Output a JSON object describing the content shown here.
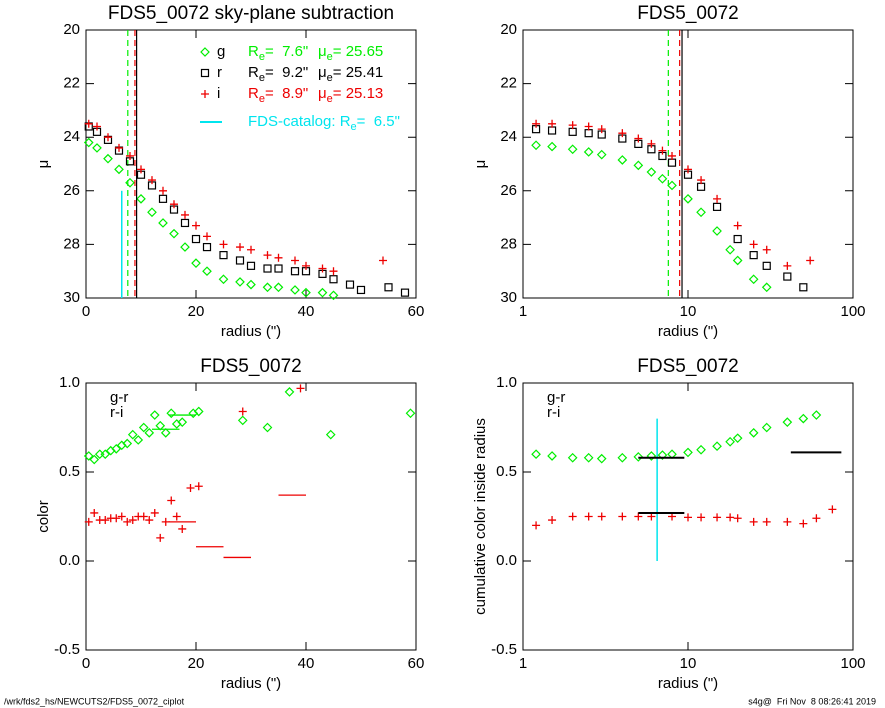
{
  "chart_data": [
    {
      "type": "scatter",
      "title": "FDS5_0072 sky-plane subtraction",
      "xlabel": "radius (\")",
      "ylabel": "μ",
      "xlim": [
        0,
        60
      ],
      "xticks": [
        0,
        20,
        40,
        60
      ],
      "ylim": [
        30,
        20
      ],
      "yticks": [
        20,
        22,
        24,
        26,
        28,
        30
      ],
      "xlog": false,
      "legend_text": {
        "r": "R",
        "mu": "μ",
        "sub": "e",
        "eq": "= "
      },
      "catalog": {
        "label": "FDS-catalog: ",
        "value": 6.5,
        "value_label": " 6.5\"",
        "color": "#00e5ee",
        "span": [
          26,
          30
        ]
      },
      "series": [
        {
          "name": "g",
          "color": "#00ee00",
          "marker": "diamond",
          "re": 7.6,
          "re_label": " 7.6\"",
          "mu_e": 25.65,
          "dash": true,
          "x": [
            0.5,
            2,
            4,
            6,
            8,
            10,
            12,
            14,
            16,
            18,
            20,
            22,
            25,
            28,
            30,
            33,
            35,
            38,
            40,
            43,
            45
          ],
          "y": [
            24.2,
            24.4,
            24.8,
            25.2,
            25.7,
            26.3,
            26.8,
            27.2,
            27.6,
            28.1,
            28.7,
            29.0,
            29.3,
            29.4,
            29.5,
            29.6,
            29.6,
            29.7,
            29.8,
            29.8,
            29.9
          ]
        },
        {
          "name": "r",
          "color": "#000000",
          "marker": "square",
          "re": 9.2,
          "re_label": " 9.2\"",
          "mu_e": 25.41,
          "dash": false,
          "x": [
            0.5,
            2,
            4,
            6,
            8,
            10,
            12,
            14,
            16,
            18,
            20,
            22,
            25,
            28,
            30,
            33,
            35,
            38,
            40,
            43,
            45,
            48,
            50,
            55,
            58
          ],
          "y": [
            23.6,
            23.8,
            24.1,
            24.5,
            24.9,
            25.4,
            25.8,
            26.3,
            26.7,
            27.2,
            27.8,
            28.1,
            28.4,
            28.6,
            28.8,
            28.9,
            28.9,
            29.0,
            29.0,
            29.1,
            29.3,
            29.5,
            29.7,
            29.6,
            29.8
          ]
        },
        {
          "name": "i",
          "color": "#ee0000",
          "marker": "plus",
          "re": 8.9,
          "re_label": " 8.9\"",
          "mu_e": 25.13,
          "dash": true,
          "x": [
            0.5,
            2,
            4,
            6,
            8,
            10,
            12,
            14,
            16,
            18,
            20,
            22,
            25,
            28,
            30,
            33,
            35,
            38,
            40,
            43,
            45,
            54
          ],
          "y": [
            23.5,
            23.6,
            24.0,
            24.4,
            24.7,
            25.2,
            25.6,
            26.0,
            26.5,
            26.9,
            27.3,
            27.7,
            28.0,
            28.1,
            28.2,
            28.4,
            28.5,
            28.6,
            28.8,
            28.9,
            29.0,
            28.6
          ]
        }
      ]
    },
    {
      "type": "scatter",
      "title": "FDS5_0072",
      "xlabel": "radius (\")",
      "ylabel": "μ",
      "xlim": [
        1,
        100
      ],
      "xticks": [
        1,
        10,
        100
      ],
      "ylim": [
        30,
        20
      ],
      "yticks": [
        20,
        22,
        24,
        26,
        28,
        30
      ],
      "xlog": true,
      "series": [
        {
          "color": "#00ee00",
          "marker": "diamond",
          "re": 7.6,
          "dash": true,
          "x": [
            1.2,
            1.5,
            2,
            2.5,
            3,
            4,
            5,
            6,
            7,
            8,
            10,
            12,
            15,
            18,
            20,
            25,
            30
          ],
          "y": [
            24.3,
            24.35,
            24.45,
            24.55,
            24.65,
            24.85,
            25.05,
            25.3,
            25.55,
            25.8,
            26.3,
            26.8,
            27.5,
            28.2,
            28.6,
            29.3,
            29.6
          ]
        },
        {
          "color": "#000000",
          "marker": "square",
          "re": 9.2,
          "dash": false,
          "x": [
            1.2,
            1.5,
            2,
            2.5,
            3,
            4,
            5,
            6,
            7,
            8,
            10,
            12,
            15,
            20,
            25,
            30,
            40,
            50
          ],
          "y": [
            23.7,
            23.75,
            23.8,
            23.85,
            23.9,
            24.05,
            24.25,
            24.45,
            24.7,
            24.95,
            25.4,
            25.85,
            26.6,
            27.8,
            28.4,
            28.8,
            29.2,
            29.6
          ]
        },
        {
          "color": "#ee0000",
          "marker": "plus",
          "re": 8.9,
          "dash": true,
          "x": [
            1.2,
            1.5,
            2,
            2.5,
            3,
            4,
            5,
            6,
            7,
            8,
            10,
            12,
            15,
            20,
            25,
            30,
            40,
            55
          ],
          "y": [
            23.5,
            23.5,
            23.55,
            23.6,
            23.7,
            23.85,
            24.05,
            24.25,
            24.5,
            24.7,
            25.2,
            25.6,
            26.3,
            27.3,
            28.0,
            28.2,
            28.8,
            28.6
          ]
        }
      ]
    },
    {
      "type": "scatter",
      "title": "FDS5_0072",
      "xlabel": "radius (\")",
      "ylabel": "color",
      "xlim": [
        0,
        60
      ],
      "xticks": [
        0,
        20,
        40,
        60
      ],
      "ylim": [
        -0.5,
        1
      ],
      "yticks": [
        -0.5,
        {
          "value": 0,
          "label": "0.0"
        },
        0.5,
        {
          "value": 1,
          "label": "1.0"
        }
      ],
      "xlog": false,
      "series": [
        {
          "name": "g-r",
          "color": "#00ee00",
          "marker": "diamond",
          "x": [
            0.5,
            1.5,
            2.5,
            3.5,
            4.5,
            5.5,
            6.5,
            7.5,
            8.5,
            9.5,
            10.5,
            11.5,
            12.5,
            13.5,
            14.5,
            15.5,
            16.5,
            17.5,
            19.5,
            20.5,
            28.5,
            33,
            37,
            44.5,
            59
          ],
          "y": [
            0.59,
            0.57,
            0.6,
            0.6,
            0.62,
            0.63,
            0.65,
            0.66,
            0.71,
            0.68,
            0.75,
            0.72,
            0.82,
            0.76,
            0.72,
            0.83,
            0.77,
            0.78,
            0.83,
            0.84,
            0.79,
            0.75,
            0.95,
            0.71,
            0.83
          ],
          "segments": [
            [
              12,
              17,
              0.74
            ],
            [
              15,
              20,
              0.82
            ]
          ]
        },
        {
          "name": "r-i",
          "color": "#ee0000",
          "marker": "plus",
          "x": [
            0.5,
            1.5,
            2.5,
            3.5,
            4.5,
            5.5,
            6.5,
            7.5,
            8.5,
            9.5,
            10.5,
            11.5,
            12.5,
            13.5,
            14.5,
            15.5,
            16.5,
            17.5,
            19,
            20.5,
            28.5,
            39
          ],
          "y": [
            0.22,
            0.27,
            0.23,
            0.23,
            0.24,
            0.24,
            0.25,
            0.22,
            0.23,
            0.25,
            0.25,
            0.23,
            0.27,
            0.13,
            0.22,
            0.34,
            0.25,
            0.18,
            0.41,
            0.42,
            0.84,
            0.97
          ],
          "segments": [
            [
              15,
              20,
              0.22
            ],
            [
              20,
              25,
              0.08
            ],
            [
              25,
              30,
              0.02
            ],
            [
              35,
              40,
              0.37
            ]
          ]
        }
      ]
    },
    {
      "type": "scatter",
      "title": "FDS5_0072",
      "xlabel": "radius (\")",
      "ylabel": "cumulative color inside radius",
      "xlim": [
        1,
        100
      ],
      "xticks": [
        1,
        10,
        100
      ],
      "ylim": [
        -0.5,
        1
      ],
      "yticks": [
        -0.5,
        {
          "value": 0,
          "label": "0.0"
        },
        0.5,
        {
          "value": 1,
          "label": "1.0"
        }
      ],
      "xlog": true,
      "catalog": {
        "value": 6.5,
        "color": "#00e5ee",
        "span": [
          0,
          0.8
        ]
      },
      "segment_color": "#000000",
      "segments": [
        [
          5,
          9.5,
          0.58
        ],
        [
          5,
          9.5,
          0.27
        ],
        [
          42,
          85,
          0.61
        ]
      ],
      "series": [
        {
          "name": "g-r",
          "color": "#00ee00",
          "marker": "diamond",
          "x": [
            1.2,
            1.5,
            2,
            2.5,
            3,
            4,
            5,
            6,
            7,
            8,
            10,
            12,
            15,
            18,
            20,
            25,
            30,
            40,
            50,
            60
          ],
          "y": [
            0.6,
            0.59,
            0.58,
            0.58,
            0.575,
            0.58,
            0.585,
            0.59,
            0.595,
            0.6,
            0.61,
            0.625,
            0.645,
            0.67,
            0.69,
            0.72,
            0.75,
            0.78,
            0.8,
            0.82
          ]
        },
        {
          "name": "r-i",
          "color": "#ee0000",
          "marker": "plus",
          "x": [
            1.2,
            1.5,
            2,
            2.5,
            3,
            4,
            5,
            6,
            8,
            10,
            12,
            15,
            18,
            20,
            25,
            30,
            40,
            50,
            60,
            75
          ],
          "y": [
            0.2,
            0.23,
            0.25,
            0.25,
            0.25,
            0.25,
            0.25,
            0.25,
            0.25,
            0.245,
            0.245,
            0.245,
            0.245,
            0.24,
            0.22,
            0.22,
            0.22,
            0.21,
            0.24,
            0.29
          ]
        }
      ]
    }
  ],
  "footer": {
    "left": "/wrk/fds2_hs/NEWCUTS2/FDS5_0072_ciplot",
    "right": "s4g@  Fri Nov  8 08:26:41 2019"
  }
}
